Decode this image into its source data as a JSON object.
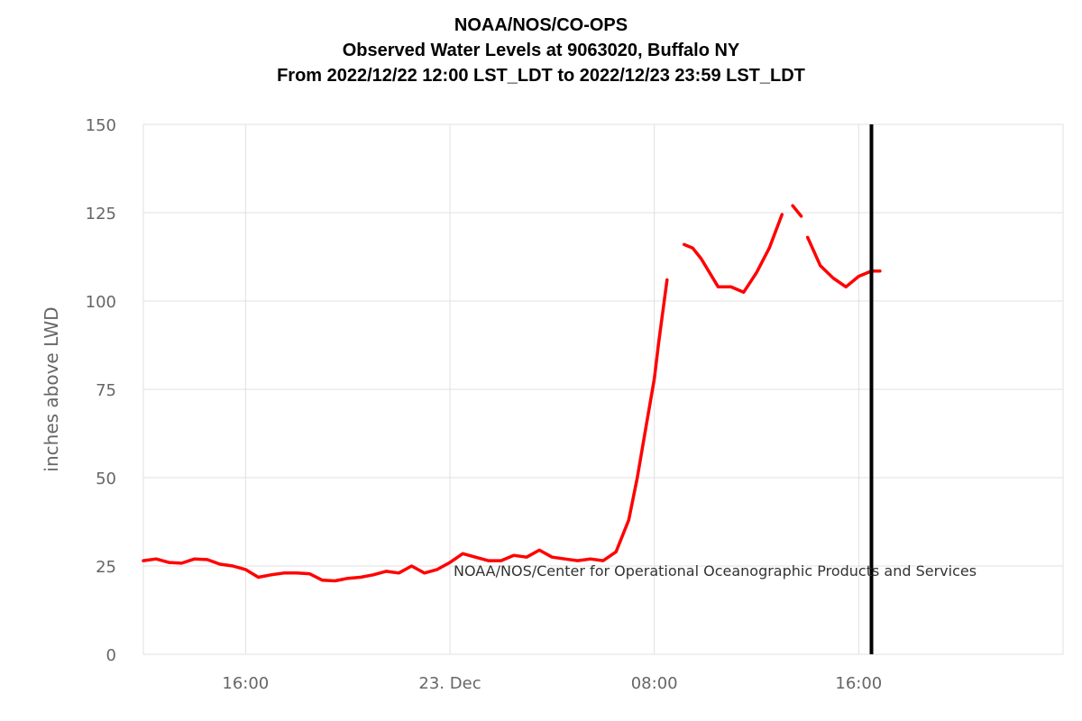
{
  "header": {
    "line1": "NOAA/NOS/CO-OPS",
    "line2": "Observed Water Levels at 9063020, Buffalo NY",
    "line3": "From 2022/12/22 12:00 LST_LDT to 2022/12/23 23:59 LST_LDT"
  },
  "credit": "NOAA/NOS/Center for Operational Oceanographic Products and Services",
  "colors": {
    "series": "#ff0000",
    "grid": "#e0e0e0",
    "marker": "#000000",
    "axis_text": "#666666"
  },
  "chart_data": {
    "type": "line",
    "title": "NOAA/NOS/CO-OPS",
    "ylabel": "inches above LWD",
    "xlabel": "",
    "xlim": [
      "2022-12-22 12:00",
      "2022-12-23 23:59"
    ],
    "ylim": [
      0,
      150
    ],
    "yticks": [
      0,
      25,
      50,
      75,
      100,
      125,
      150
    ],
    "xticks": [
      {
        "t": "2022-12-22 16:00",
        "label": "16:00"
      },
      {
        "t": "2022-12-23 00:00",
        "label": "23. Dec"
      },
      {
        "t": "2022-12-23 08:00",
        "label": "08:00"
      },
      {
        "t": "2022-12-23 16:00",
        "label": "16:00"
      }
    ],
    "grid": true,
    "vertical_marker": "2022-12-23 16:30",
    "series": [
      {
        "color": "#ff0000",
        "segments": [
          [
            [
              "2022-12-22 12:00",
              26.5
            ],
            [
              "2022-12-22 12:30",
              27.0
            ],
            [
              "2022-12-22 13:00",
              26.0
            ],
            [
              "2022-12-22 13:30",
              25.8
            ],
            [
              "2022-12-22 14:00",
              27.0
            ],
            [
              "2022-12-22 14:30",
              26.8
            ],
            [
              "2022-12-22 15:00",
              25.5
            ],
            [
              "2022-12-22 15:30",
              25.0
            ],
            [
              "2022-12-22 16:00",
              24.0
            ],
            [
              "2022-12-22 16:30",
              21.8
            ],
            [
              "2022-12-22 17:00",
              22.5
            ],
            [
              "2022-12-22 17:30",
              23.0
            ],
            [
              "2022-12-22 18:00",
              23.0
            ],
            [
              "2022-12-22 18:30",
              22.8
            ],
            [
              "2022-12-22 19:00",
              21.0
            ],
            [
              "2022-12-22 19:30",
              20.8
            ],
            [
              "2022-12-22 20:00",
              21.5
            ],
            [
              "2022-12-22 20:30",
              21.8
            ],
            [
              "2022-12-22 21:00",
              22.5
            ],
            [
              "2022-12-22 21:30",
              23.5
            ],
            [
              "2022-12-22 22:00",
              23.0
            ],
            [
              "2022-12-22 22:30",
              25.0
            ],
            [
              "2022-12-22 23:00",
              23.0
            ],
            [
              "2022-12-22 23:30",
              24.0
            ],
            [
              "2022-12-23 00:00",
              26.0
            ],
            [
              "2022-12-23 00:30",
              28.5
            ],
            [
              "2022-12-23 01:00",
              27.5
            ],
            [
              "2022-12-23 01:30",
              26.5
            ],
            [
              "2022-12-23 02:00",
              26.5
            ],
            [
              "2022-12-23 02:30",
              28.0
            ],
            [
              "2022-12-23 03:00",
              27.5
            ],
            [
              "2022-12-23 03:30",
              29.5
            ],
            [
              "2022-12-23 04:00",
              27.5
            ],
            [
              "2022-12-23 04:30",
              27.0
            ],
            [
              "2022-12-23 05:00",
              26.5
            ],
            [
              "2022-12-23 05:30",
              27.0
            ],
            [
              "2022-12-23 06:00",
              26.5
            ],
            [
              "2022-12-23 06:30",
              29.0
            ],
            [
              "2022-12-23 07:00",
              38.0
            ],
            [
              "2022-12-23 07:20",
              50.0
            ],
            [
              "2022-12-23 07:40",
              64.0
            ],
            [
              "2022-12-23 08:00",
              78.0
            ],
            [
              "2022-12-23 08:10",
              88.0
            ],
            [
              "2022-12-23 08:30",
              106.0
            ]
          ],
          [
            [
              "2022-12-23 09:10",
              116.0
            ],
            [
              "2022-12-23 09:30",
              115.0
            ],
            [
              "2022-12-23 09:50",
              112.0
            ],
            [
              "2022-12-23 10:30",
              104.0
            ],
            [
              "2022-12-23 11:00",
              104.0
            ],
            [
              "2022-12-23 11:30",
              102.5
            ],
            [
              "2022-12-23 12:00",
              108.0
            ],
            [
              "2022-12-23 12:30",
              115.0
            ],
            [
              "2022-12-23 13:00",
              124.5
            ]
          ],
          [
            [
              "2022-12-23 13:25",
              127.0
            ],
            [
              "2022-12-23 13:45",
              124.0
            ]
          ],
          [
            [
              "2022-12-23 14:00",
              118.0
            ],
            [
              "2022-12-23 14:30",
              110.0
            ],
            [
              "2022-12-23 15:00",
              106.5
            ],
            [
              "2022-12-23 15:30",
              104.0
            ],
            [
              "2022-12-23 16:00",
              107.0
            ],
            [
              "2022-12-23 16:30",
              108.5
            ],
            [
              "2022-12-23 16:50",
              108.5
            ]
          ]
        ]
      }
    ]
  }
}
